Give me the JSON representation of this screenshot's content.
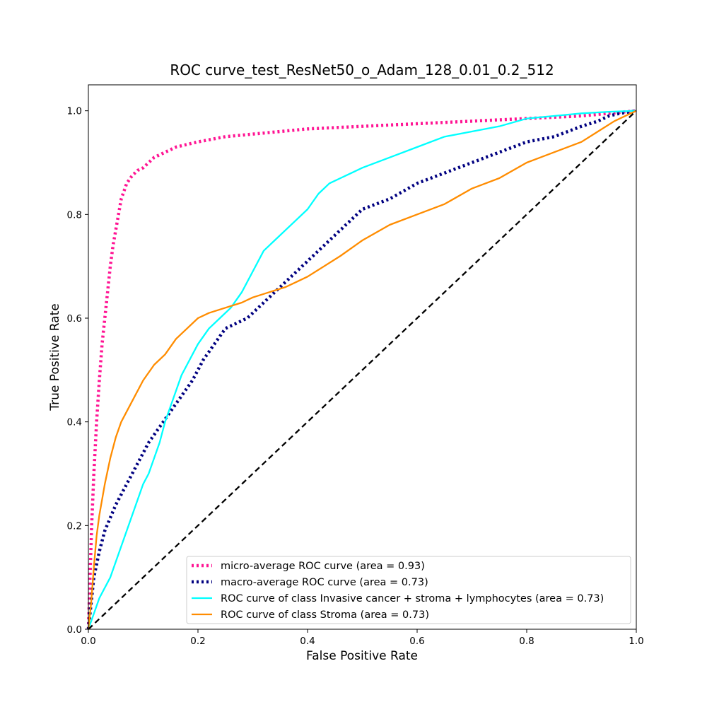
{
  "chart_data": {
    "type": "line",
    "title": "ROC curve_test_ResNet50_o_Adam_128_0.01_0.2_512",
    "xlabel": "False Positive Rate",
    "ylabel": "True Positive Rate",
    "xlim": [
      0.0,
      1.0
    ],
    "ylim": [
      0.0,
      1.05
    ],
    "xticks": [
      "0.0",
      "0.2",
      "0.4",
      "0.6",
      "0.8",
      "1.0"
    ],
    "yticks": [
      "0.0",
      "0.2",
      "0.4",
      "0.6",
      "0.8",
      "1.0"
    ],
    "grid": false,
    "legend_position": "bottom-right",
    "series": [
      {
        "name": "micro-average ROC curve (area = 0.93)",
        "color": "#ff1493",
        "style": "dotted",
        "x": [
          0.0,
          0.003,
          0.006,
          0.01,
          0.015,
          0.02,
          0.025,
          0.03,
          0.035,
          0.04,
          0.045,
          0.05,
          0.055,
          0.06,
          0.07,
          0.08,
          0.09,
          0.1,
          0.11,
          0.12,
          0.14,
          0.16,
          0.18,
          0.2,
          0.25,
          0.3,
          0.35,
          0.4,
          0.5,
          0.6,
          0.7,
          0.8,
          0.9,
          0.95,
          1.0
        ],
        "y": [
          0.0,
          0.1,
          0.2,
          0.3,
          0.4,
          0.48,
          0.55,
          0.6,
          0.65,
          0.7,
          0.74,
          0.77,
          0.8,
          0.83,
          0.86,
          0.875,
          0.885,
          0.89,
          0.9,
          0.91,
          0.92,
          0.93,
          0.935,
          0.94,
          0.95,
          0.955,
          0.96,
          0.965,
          0.97,
          0.975,
          0.98,
          0.985,
          0.99,
          0.995,
          1.0
        ]
      },
      {
        "name": "macro-average ROC curve (area = 0.73)",
        "color": "#000080",
        "style": "dotted",
        "x": [
          0.0,
          0.005,
          0.01,
          0.02,
          0.03,
          0.05,
          0.07,
          0.09,
          0.11,
          0.13,
          0.15,
          0.17,
          0.19,
          0.21,
          0.23,
          0.25,
          0.27,
          0.29,
          0.31,
          0.33,
          0.35,
          0.38,
          0.4,
          0.42,
          0.45,
          0.48,
          0.5,
          0.55,
          0.6,
          0.65,
          0.7,
          0.75,
          0.8,
          0.85,
          0.9,
          0.93,
          0.95,
          0.97,
          1.0
        ],
        "y": [
          0.0,
          0.05,
          0.1,
          0.15,
          0.19,
          0.24,
          0.28,
          0.32,
          0.36,
          0.39,
          0.42,
          0.45,
          0.48,
          0.52,
          0.55,
          0.58,
          0.59,
          0.6,
          0.62,
          0.64,
          0.66,
          0.69,
          0.71,
          0.73,
          0.76,
          0.79,
          0.81,
          0.83,
          0.86,
          0.88,
          0.9,
          0.92,
          0.94,
          0.95,
          0.97,
          0.98,
          0.99,
          0.995,
          1.0
        ]
      },
      {
        "name": "ROC curve of class Invasive cancer + stroma + lymphocytes (area = 0.73)",
        "color": "#00ffff",
        "style": "solid",
        "x": [
          0.0,
          0.01,
          0.02,
          0.03,
          0.04,
          0.05,
          0.06,
          0.07,
          0.08,
          0.09,
          0.1,
          0.11,
          0.12,
          0.13,
          0.14,
          0.15,
          0.16,
          0.17,
          0.18,
          0.19,
          0.2,
          0.22,
          0.24,
          0.26,
          0.28,
          0.3,
          0.32,
          0.34,
          0.36,
          0.38,
          0.4,
          0.42,
          0.44,
          0.46,
          0.48,
          0.5,
          0.55,
          0.6,
          0.65,
          0.7,
          0.75,
          0.8,
          0.85,
          0.9,
          0.95,
          1.0
        ],
        "y": [
          0.0,
          0.03,
          0.06,
          0.08,
          0.1,
          0.13,
          0.16,
          0.19,
          0.22,
          0.25,
          0.28,
          0.3,
          0.33,
          0.36,
          0.4,
          0.43,
          0.46,
          0.49,
          0.51,
          0.53,
          0.55,
          0.58,
          0.6,
          0.62,
          0.65,
          0.69,
          0.73,
          0.75,
          0.77,
          0.79,
          0.81,
          0.84,
          0.86,
          0.87,
          0.88,
          0.89,
          0.91,
          0.93,
          0.95,
          0.96,
          0.97,
          0.985,
          0.99,
          0.995,
          0.998,
          1.0
        ]
      },
      {
        "name": "ROC curve of class Stroma (area = 0.73)",
        "color": "#ff8c00",
        "style": "solid",
        "x": [
          0.0,
          0.005,
          0.01,
          0.015,
          0.02,
          0.03,
          0.04,
          0.05,
          0.06,
          0.08,
          0.1,
          0.12,
          0.14,
          0.16,
          0.18,
          0.2,
          0.22,
          0.25,
          0.28,
          0.3,
          0.33,
          0.36,
          0.38,
          0.4,
          0.43,
          0.46,
          0.5,
          0.55,
          0.6,
          0.65,
          0.7,
          0.75,
          0.8,
          0.85,
          0.9,
          0.93,
          0.96,
          1.0
        ],
        "y": [
          0.0,
          0.05,
          0.12,
          0.18,
          0.22,
          0.28,
          0.33,
          0.37,
          0.4,
          0.44,
          0.48,
          0.51,
          0.53,
          0.56,
          0.58,
          0.6,
          0.61,
          0.62,
          0.63,
          0.64,
          0.65,
          0.66,
          0.67,
          0.68,
          0.7,
          0.72,
          0.75,
          0.78,
          0.8,
          0.82,
          0.85,
          0.87,
          0.9,
          0.92,
          0.94,
          0.96,
          0.98,
          1.0
        ]
      },
      {
        "name": "",
        "color": "#000000",
        "style": "dashed",
        "x": [
          0.0,
          1.0
        ],
        "y": [
          0.0,
          1.0
        ]
      }
    ]
  }
}
